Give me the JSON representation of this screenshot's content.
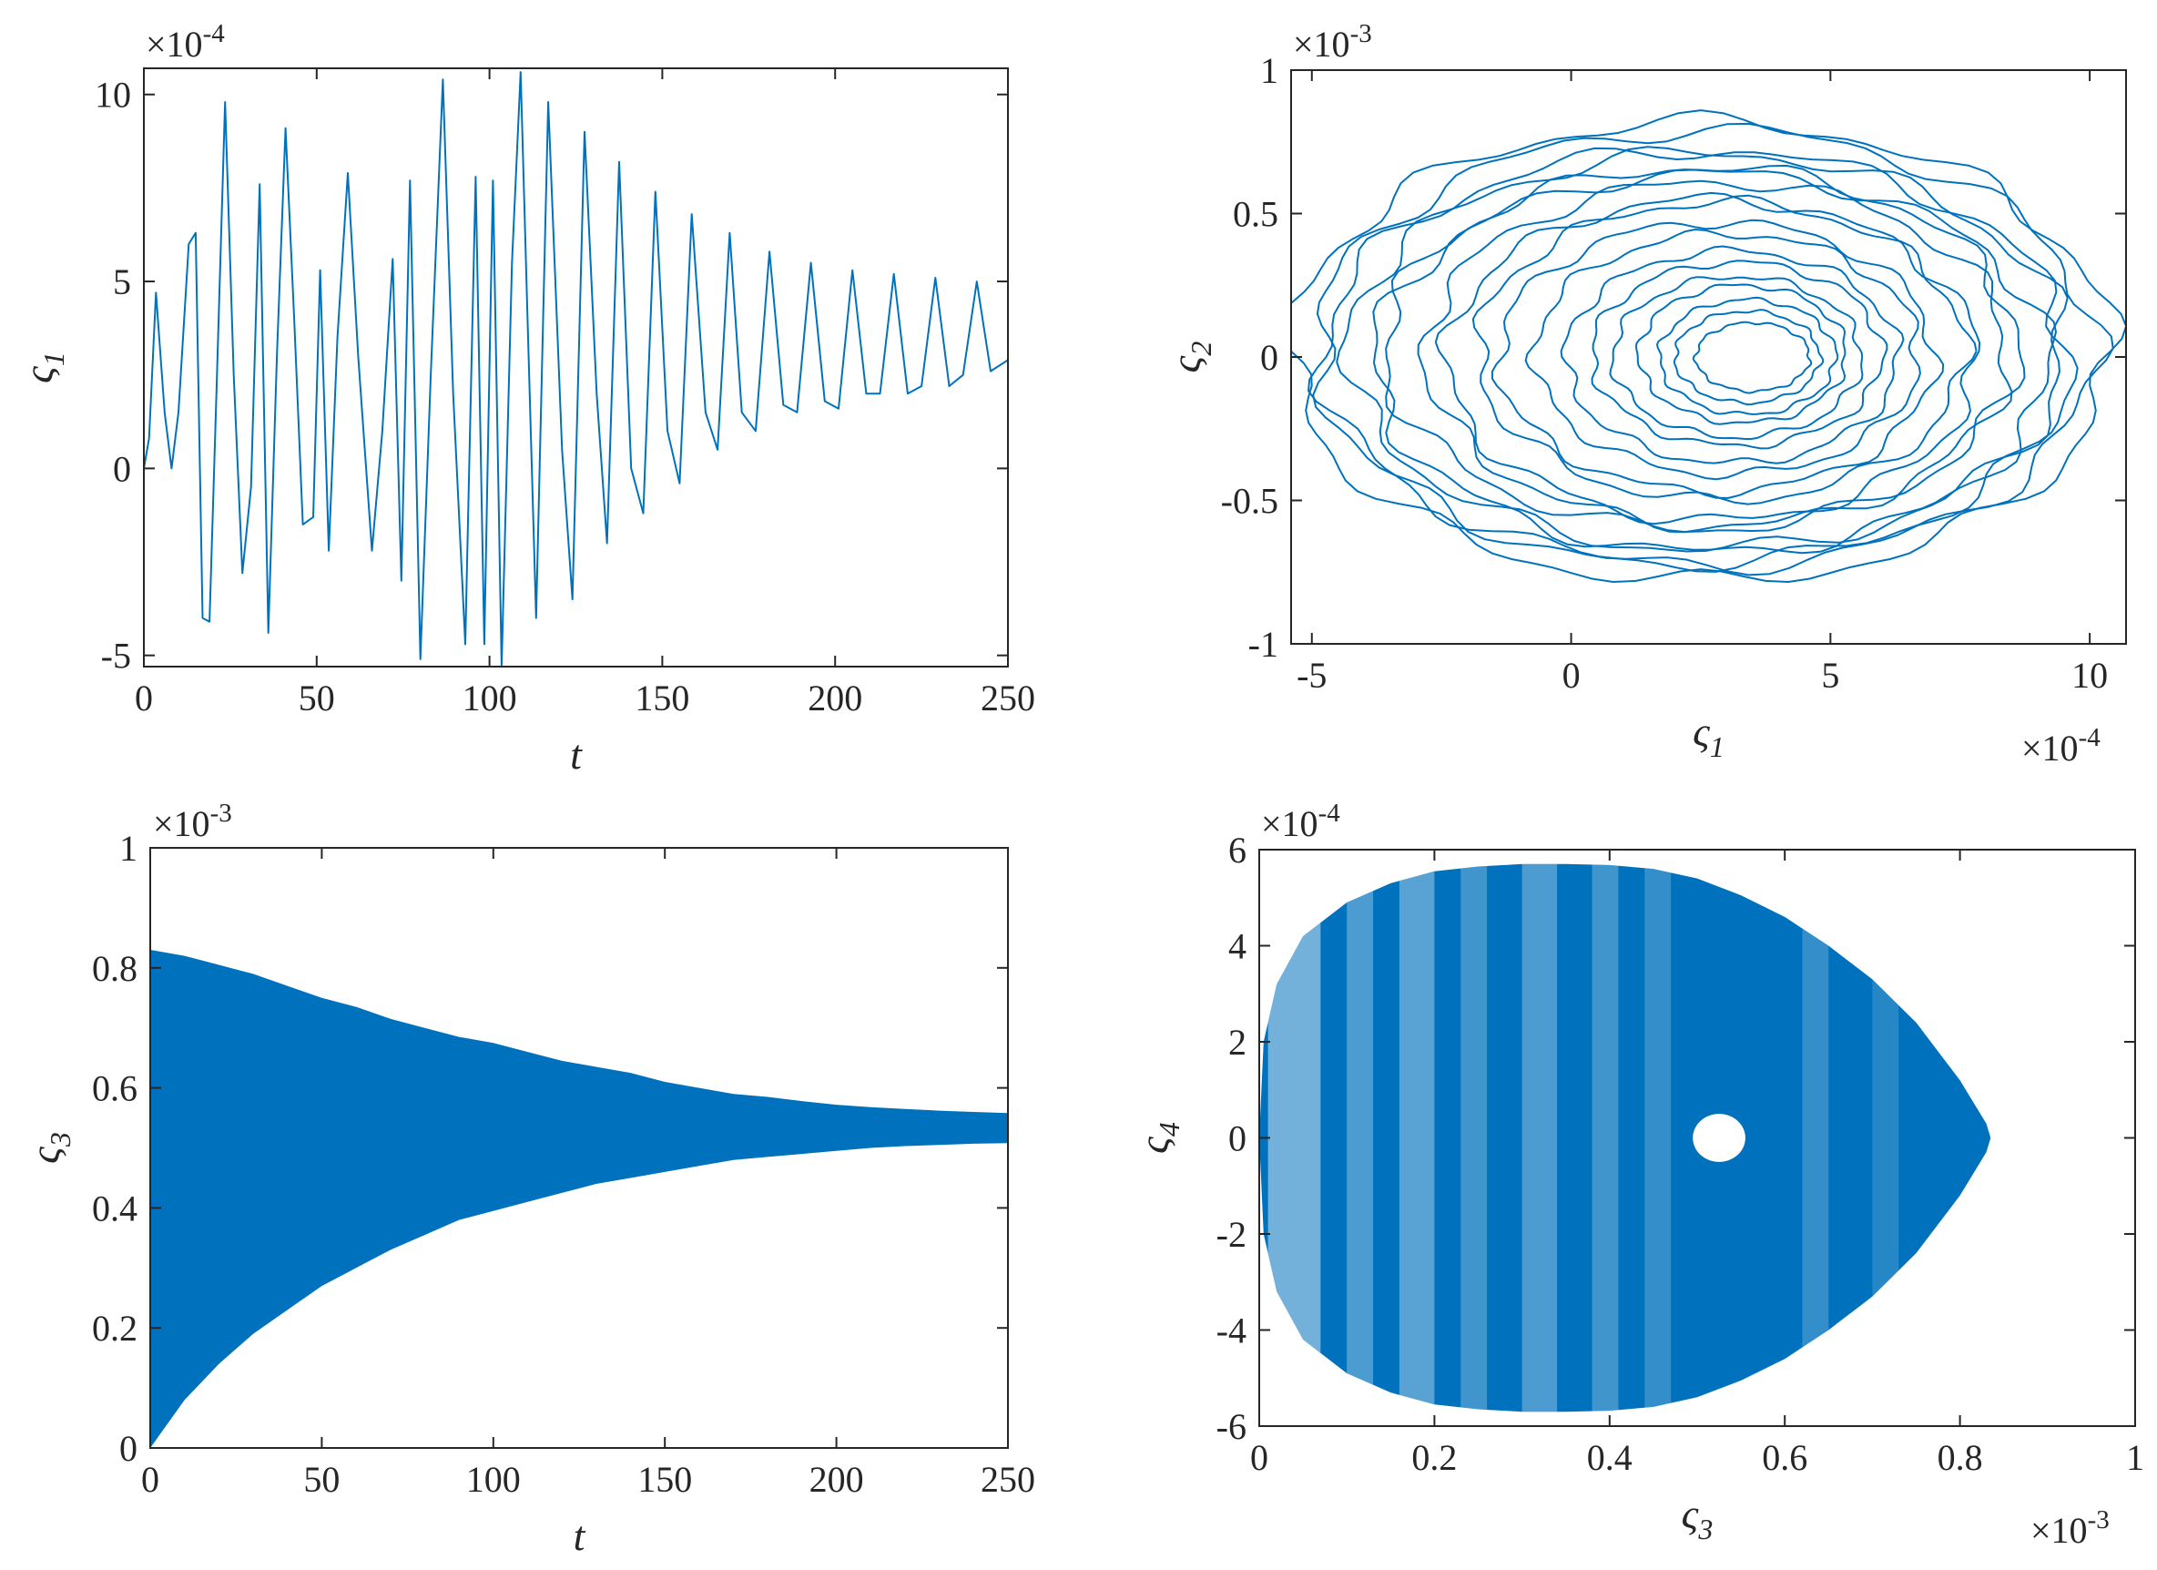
{
  "chart_data": [
    {
      "id": "p1",
      "type": "line",
      "xlabel": "t",
      "ylabel": "ς",
      "ylabel_sub": "1",
      "xlim": [
        0,
        250
      ],
      "ylim": [
        -5.3,
        10.7
      ],
      "y_multiplier": {
        "base": "×10",
        "exp": "-4"
      },
      "xticks": [
        0,
        50,
        100,
        150,
        200,
        250
      ],
      "yticks": [
        -5,
        0,
        5,
        10
      ],
      "color": "#0072BD",
      "grid": false,
      "series": [
        {
          "x": [
            0,
            1.5,
            3.5,
            6,
            8,
            10,
            13,
            15,
            17,
            19,
            21,
            23.5,
            26,
            28.5,
            31,
            33.5,
            36,
            38.5,
            41,
            43.5,
            46,
            49,
            51,
            53.5,
            56,
            59,
            62,
            66,
            69,
            72,
            74.5,
            77,
            80,
            83,
            86.5,
            89.5,
            93,
            96,
            98.5,
            101,
            103.5,
            106.5,
            109,
            111,
            113.5,
            117,
            121,
            124,
            127.5,
            131,
            134,
            137.5,
            141,
            144.5,
            148,
            151.5,
            155,
            158.5,
            162.5,
            166,
            169.5,
            173,
            177,
            181,
            185,
            189,
            193,
            197,
            201,
            205,
            209,
            213,
            217,
            221,
            225,
            229,
            233,
            237,
            241,
            245,
            250
          ],
          "y": [
            0,
            0.8,
            4.7,
            1.5,
            0,
            1.5,
            6.0,
            6.3,
            -4.0,
            -4.1,
            2.0,
            9.8,
            2.5,
            -2.8,
            -0.5,
            7.6,
            -4.4,
            3.0,
            9.1,
            4.0,
            -1.5,
            -1.3,
            5.3,
            -2.2,
            3.5,
            7.9,
            3.0,
            -2.2,
            1.0,
            5.6,
            -3.0,
            7.7,
            -5.1,
            2.5,
            10.4,
            2.0,
            -4.7,
            7.8,
            -4.7,
            7.7,
            -5.3,
            5.5,
            10.6,
            4.0,
            -4.0,
            9.8,
            0.5,
            -3.5,
            9.0,
            2.0,
            -2.0,
            8.2,
            0.0,
            -1.2,
            7.4,
            1.0,
            -0.4,
            6.8,
            1.5,
            0.5,
            6.3,
            1.5,
            1.0,
            5.8,
            1.7,
            1.5,
            5.5,
            1.8,
            1.6,
            5.3,
            2.0,
            2.0,
            5.2,
            2.0,
            2.2,
            5.1,
            2.2,
            2.5,
            5.0,
            2.6,
            2.9
          ]
        }
      ]
    },
    {
      "id": "p2",
      "type": "line",
      "xlabel": "ς",
      "xlabel_sub": "1",
      "ylabel": "ς",
      "ylabel_sub": "2",
      "xlim": [
        -5.4,
        10.7
      ],
      "ylim": [
        -1,
        1
      ],
      "x_multiplier": {
        "base": "×10",
        "exp": "-4"
      },
      "y_multiplier": {
        "base": "×10",
        "exp": "-3"
      },
      "xticks": [
        -5,
        0,
        5,
        10
      ],
      "yticks": [
        -1,
        -0.5,
        0,
        0.5,
        1
      ],
      "xtick_labels": [
        "-5",
        "0",
        "5",
        "10"
      ],
      "ytick_labels": [
        "-1",
        "-0.5",
        "0",
        "0.5",
        "1"
      ],
      "color": "#0072BD",
      "grid": false,
      "series": [
        {
          "rings": [
            {
              "cx": 2.5,
              "cy": 0.02,
              "rx": 7.9,
              "ry": 0.8
            },
            {
              "cx": 2.6,
              "cy": 0.03,
              "rx": 7.5,
              "ry": 0.76
            },
            {
              "cx": 2.4,
              "cy": 0.0,
              "rx": 7.2,
              "ry": 0.72
            },
            {
              "cx": 2.6,
              "cy": 0.02,
              "rx": 6.9,
              "ry": 0.69
            },
            {
              "cx": 2.7,
              "cy": -0.02,
              "rx": 6.5,
              "ry": 0.66
            },
            {
              "cx": 2.5,
              "cy": 0.03,
              "rx": 6.1,
              "ry": 0.63
            },
            {
              "cx": 2.8,
              "cy": 0.01,
              "rx": 5.6,
              "ry": 0.6
            },
            {
              "cx": 2.7,
              "cy": -0.01,
              "rx": 5.1,
              "ry": 0.56
            },
            {
              "cx": 2.9,
              "cy": 0.02,
              "rx": 4.7,
              "ry": 0.52
            },
            {
              "cx": 2.8,
              "cy": 0.0,
              "rx": 4.2,
              "ry": 0.47
            },
            {
              "cx": 3.0,
              "cy": 0.01,
              "rx": 3.7,
              "ry": 0.42
            },
            {
              "cx": 3.1,
              "cy": 0.0,
              "rx": 3.2,
              "ry": 0.37
            },
            {
              "cx": 3.2,
              "cy": 0.01,
              "rx": 2.8,
              "ry": 0.32
            },
            {
              "cx": 3.2,
              "cy": 0.0,
              "rx": 2.4,
              "ry": 0.28
            },
            {
              "cx": 3.3,
              "cy": 0.01,
              "rx": 2.0,
              "ry": 0.24
            },
            {
              "cx": 3.4,
              "cy": 0.0,
              "rx": 1.7,
              "ry": 0.2
            },
            {
              "cx": 3.4,
              "cy": 0.0,
              "rx": 1.4,
              "ry": 0.16
            },
            {
              "cx": 3.5,
              "cy": 0.0,
              "rx": 1.1,
              "ry": 0.12
            }
          ]
        }
      ]
    },
    {
      "id": "p3",
      "type": "area",
      "xlabel": "t",
      "ylabel": "ς",
      "ylabel_sub": "3",
      "xlim": [
        0,
        250
      ],
      "ylim": [
        0,
        1
      ],
      "y_multiplier": {
        "base": "×10",
        "exp": "-3"
      },
      "xticks": [
        0,
        50,
        100,
        150,
        200,
        250
      ],
      "yticks": [
        0,
        0.2,
        0.4,
        0.6,
        0.8,
        1
      ],
      "ytick_labels": [
        "0",
        "0.2",
        "0.4",
        "0.6",
        "0.8",
        "1"
      ],
      "color": "#0072BD",
      "grid": false,
      "series": [
        {
          "x": [
            0,
            10,
            20,
            30,
            40,
            50,
            60,
            70,
            80,
            90,
            100,
            110,
            120,
            130,
            140,
            150,
            160,
            170,
            180,
            190,
            200,
            210,
            220,
            230,
            240,
            250
          ],
          "upper": [
            0.83,
            0.82,
            0.805,
            0.79,
            0.77,
            0.75,
            0.735,
            0.715,
            0.7,
            0.685,
            0.675,
            0.66,
            0.645,
            0.635,
            0.625,
            0.61,
            0.6,
            0.59,
            0.585,
            0.578,
            0.572,
            0.568,
            0.565,
            0.562,
            0.56,
            0.558
          ],
          "lower": [
            0.0,
            0.08,
            0.14,
            0.19,
            0.23,
            0.27,
            0.3,
            0.33,
            0.355,
            0.38,
            0.395,
            0.41,
            0.425,
            0.44,
            0.45,
            0.46,
            0.47,
            0.48,
            0.485,
            0.49,
            0.495,
            0.5,
            0.503,
            0.505,
            0.507,
            0.508
          ]
        }
      ]
    },
    {
      "id": "p4",
      "type": "area",
      "xlabel": "ς",
      "xlabel_sub": "3",
      "ylabel": "ς",
      "ylabel_sub": "4",
      "xlim": [
        0,
        1
      ],
      "ylim": [
        -6,
        6
      ],
      "x_multiplier": {
        "base": "×10",
        "exp": "-3"
      },
      "y_multiplier": {
        "base": "×10",
        "exp": "-4"
      },
      "xticks": [
        0,
        0.2,
        0.4,
        0.6,
        0.8,
        1
      ],
      "yticks": [
        -6,
        -4,
        -2,
        0,
        2,
        4,
        6
      ],
      "xtick_labels": [
        "0",
        "0.2",
        "0.4",
        "0.6",
        "0.8",
        "1"
      ],
      "ytick_labels": [
        "-6",
        "-4",
        "-2",
        "0",
        "2",
        "4",
        "6"
      ],
      "color": "#0072BD",
      "grid": false,
      "series": [
        {
          "outer_boundary": {
            "x": [
              0.0,
              0.005,
              0.02,
              0.05,
              0.1,
              0.15,
              0.2,
              0.25,
              0.3,
              0.35,
              0.4,
              0.45,
              0.5,
              0.55,
              0.6,
              0.65,
              0.7,
              0.75,
              0.8,
              0.83,
              0.835,
              0.83,
              0.8,
              0.75,
              0.7,
              0.65,
              0.6,
              0.55,
              0.5,
              0.45,
              0.4,
              0.35,
              0.3,
              0.25,
              0.2,
              0.15,
              0.1,
              0.05,
              0.02,
              0.005,
              0.0
            ],
            "y": [
              0.0,
              2.0,
              3.2,
              4.2,
              4.9,
              5.3,
              5.55,
              5.65,
              5.7,
              5.7,
              5.68,
              5.6,
              5.4,
              5.05,
              4.6,
              4.0,
              3.3,
              2.4,
              1.2,
              0.3,
              0.0,
              -0.3,
              -1.2,
              -2.4,
              -3.3,
              -4.0,
              -4.6,
              -5.05,
              -5.4,
              -5.6,
              -5.68,
              -5.7,
              -5.7,
              -5.65,
              -5.55,
              -5.3,
              -4.9,
              -4.2,
              -3.2,
              -2.0,
              0.0
            ]
          },
          "hole": {
            "cx": 0.525,
            "cy": 0.0,
            "rx": 0.03,
            "ry": 0.5
          }
        }
      ]
    }
  ]
}
